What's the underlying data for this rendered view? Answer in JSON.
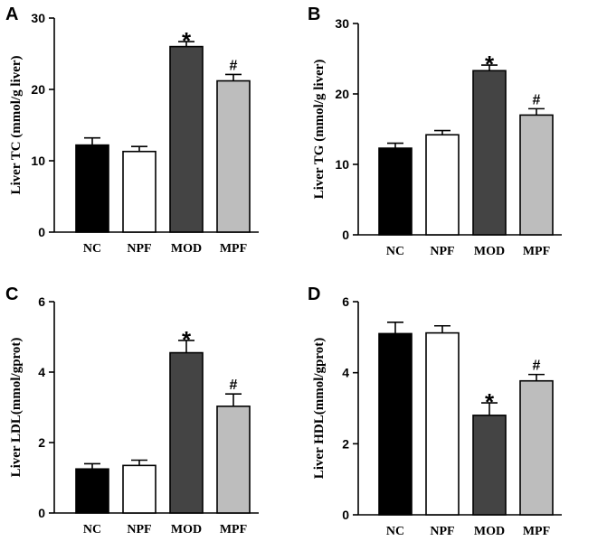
{
  "chart_data": [
    {
      "type": "bar",
      "panel_label": "A",
      "ylabel": "Liver TC (mmol/g liver)",
      "categories": [
        "NC",
        "NPF",
        "MOD",
        "MPF"
      ],
      "values": [
        12.2,
        11.3,
        26.0,
        21.2
      ],
      "errors": [
        1.0,
        0.7,
        0.7,
        0.9
      ],
      "bar_colors": [
        "#000000",
        "#ffffff",
        "#444444",
        "#bdbdbd"
      ],
      "annotations": [
        "",
        "",
        "*",
        "#"
      ],
      "ylim": [
        0,
        30
      ],
      "yticks": [
        0,
        10,
        20,
        30
      ]
    },
    {
      "type": "bar",
      "panel_label": "B",
      "ylabel": "Liver TG (mmol/g liver)",
      "categories": [
        "NC",
        "NPF",
        "MOD",
        "MPF"
      ],
      "values": [
        12.3,
        14.2,
        23.3,
        17.0
      ],
      "errors": [
        0.7,
        0.6,
        0.8,
        0.9
      ],
      "bar_colors": [
        "#000000",
        "#ffffff",
        "#444444",
        "#bdbdbd"
      ],
      "annotations": [
        "",
        "",
        "*",
        "#"
      ],
      "ylim": [
        0,
        30
      ],
      "yticks": [
        0,
        10,
        20,
        30
      ]
    },
    {
      "type": "bar",
      "panel_label": "C",
      "ylabel": "Liver LDL(mmol/gprot)",
      "categories": [
        "NC",
        "NPF",
        "MOD",
        "MPF"
      ],
      "values": [
        1.25,
        1.35,
        4.55,
        3.03
      ],
      "errors": [
        0.15,
        0.15,
        0.35,
        0.35
      ],
      "bar_colors": [
        "#000000",
        "#ffffff",
        "#444444",
        "#bdbdbd"
      ],
      "annotations": [
        "",
        "",
        "*",
        "#"
      ],
      "ylim": [
        0,
        6
      ],
      "yticks": [
        0,
        2,
        4,
        6
      ]
    },
    {
      "type": "bar",
      "panel_label": "D",
      "ylabel": "Liver HDL(mmol/gprot)",
      "categories": [
        "NC",
        "NPF",
        "MOD",
        "MPF"
      ],
      "values": [
        5.1,
        5.12,
        2.8,
        3.77
      ],
      "errors": [
        0.32,
        0.2,
        0.35,
        0.18
      ],
      "bar_colors": [
        "#000000",
        "#ffffff",
        "#444444",
        "#bdbdbd"
      ],
      "annotations": [
        "",
        "",
        "*",
        "#"
      ],
      "ylim": [
        0,
        6
      ],
      "yticks": [
        0,
        2,
        4,
        6
      ]
    }
  ]
}
